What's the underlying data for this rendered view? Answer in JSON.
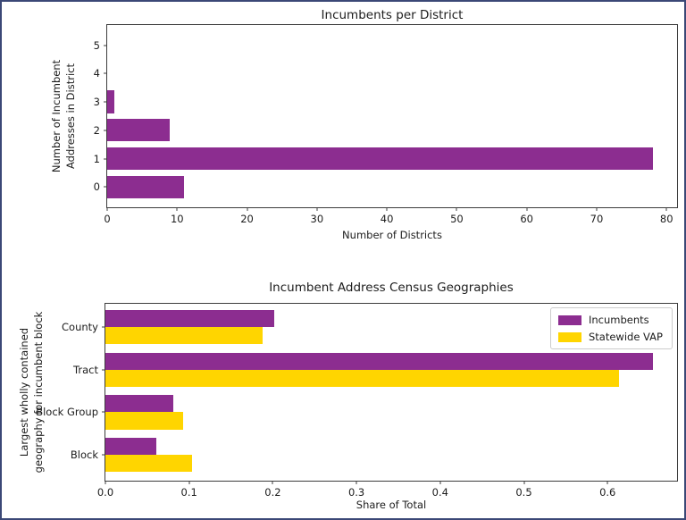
{
  "figure": {
    "background": "#ffffff",
    "border_color": "#3b4876"
  },
  "colors": {
    "incumbents_purple": "#8c2d90",
    "statewide_vap_yellow": "#ffd500",
    "spine": "#3c3c3c"
  },
  "chart_data": [
    {
      "type": "bar",
      "orientation": "horizontal",
      "title": "Incumbents per District",
      "xlabel": "Number of Districts",
      "ylabel": "Number of Incumbent\nAddresses in District",
      "categories": [
        "0",
        "1",
        "2",
        "3",
        "4",
        "5"
      ],
      "category_positions": [
        0,
        1,
        2,
        3,
        4,
        5
      ],
      "series": [
        {
          "color": "#8c2d90",
          "offset": 0,
          "values": [
            11,
            78,
            9,
            1,
            0,
            0
          ]
        }
      ],
      "bar_height": 0.8,
      "xticks": [
        0,
        10,
        20,
        30,
        40,
        50,
        60,
        70,
        80
      ],
      "xtick_labels": [
        "0",
        "10",
        "20",
        "30",
        "40",
        "50",
        "60",
        "70",
        "80"
      ],
      "xlim": [
        0,
        81.5
      ],
      "ylim": [
        -0.72,
        5.72
      ],
      "grid": false,
      "legend": null
    },
    {
      "type": "bar",
      "orientation": "horizontal",
      "title": "Incumbent Address Census Geographies",
      "xlabel": "Share of Total",
      "ylabel": "Largest wholly contained\ngeography for incumbent block",
      "categories": [
        "County",
        "Tract",
        "Block Group",
        "Block"
      ],
      "category_positions": [
        3,
        2,
        1,
        0
      ],
      "series": [
        {
          "name": "Incumbents",
          "color": "#8c2d90",
          "offset": 0.2,
          "values": [
            0.202,
            0.654,
            0.081,
            0.061
          ]
        },
        {
          "name": "Statewide VAP",
          "color": "#ffd500",
          "offset": -0.2,
          "values": [
            0.188,
            0.614,
            0.093,
            0.103
          ]
        }
      ],
      "bar_height": 0.4,
      "xticks": [
        0,
        0.1,
        0.2,
        0.3,
        0.4,
        0.5,
        0.6
      ],
      "xtick_labels": [
        "0.0",
        "0.1",
        "0.2",
        "0.3",
        "0.4",
        "0.5",
        "0.6"
      ],
      "xlim": [
        0,
        0.683
      ],
      "ylim": [
        -0.6,
        3.54
      ],
      "grid": false,
      "legend": {
        "position": "upper right",
        "items": [
          "Incumbents",
          "Statewide VAP"
        ]
      }
    }
  ]
}
